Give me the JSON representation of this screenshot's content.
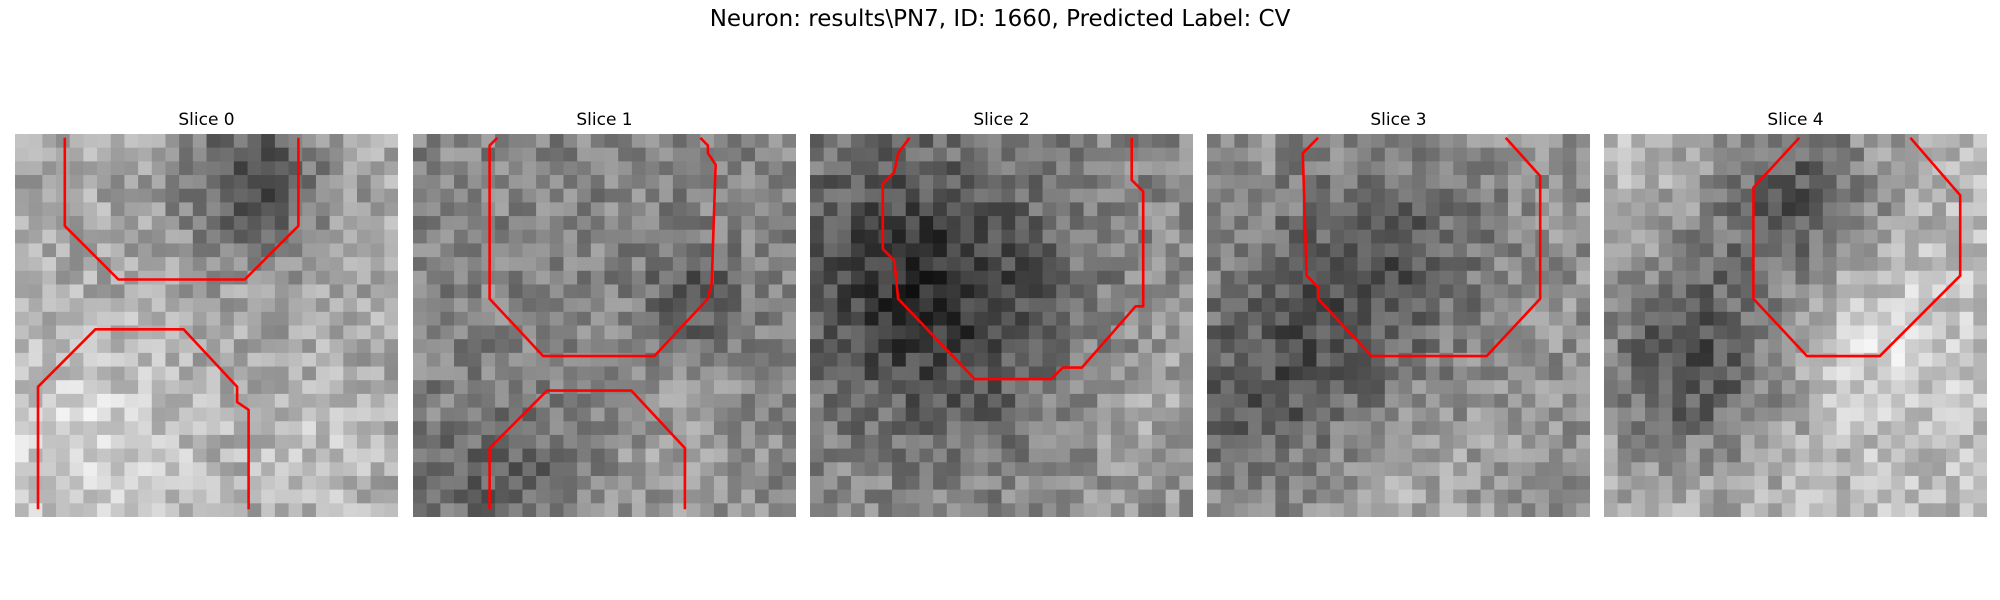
{
  "figure": {
    "suptitle": "Neuron: results\\PN7, ID: 1660, Predicted Label: CV"
  },
  "style": {
    "contour_color": "#ff0000",
    "colormap": "grayscale"
  },
  "panels": [
    {
      "title": "Slice 0",
      "mean_gray": 168,
      "dark_blobs": [
        [
          0.62,
          0.12,
          0.14,
          0.75
        ]
      ],
      "light_blobs": [
        [
          0.18,
          0.83,
          0.2,
          0.55
        ],
        [
          0.78,
          0.83,
          0.12,
          0.3
        ]
      ],
      "contours": [
        [
          [
            0.13,
            0.01
          ],
          [
            0.13,
            0.24
          ],
          [
            0.27,
            0.38
          ],
          [
            0.6,
            0.38
          ],
          [
            0.74,
            0.24
          ],
          [
            0.74,
            0.01
          ]
        ],
        [
          [
            0.06,
            0.98
          ],
          [
            0.06,
            0.66
          ],
          [
            0.21,
            0.51
          ],
          [
            0.44,
            0.51
          ],
          [
            0.58,
            0.66
          ],
          [
            0.58,
            0.7
          ],
          [
            0.61,
            0.72
          ],
          [
            0.61,
            0.98
          ]
        ]
      ]
    },
    {
      "title": "Slice 1",
      "mean_gray": 132,
      "dark_blobs": [
        [
          0.74,
          0.42,
          0.08,
          0.5
        ],
        [
          0.28,
          0.9,
          0.16,
          0.3
        ]
      ],
      "light_blobs": [
        [
          0.65,
          0.88,
          0.18,
          0.3
        ]
      ],
      "contours": [
        [
          [
            0.22,
            0.01
          ],
          [
            0.2,
            0.03
          ],
          [
            0.2,
            0.43
          ],
          [
            0.34,
            0.58
          ],
          [
            0.63,
            0.58
          ],
          [
            0.77,
            0.43
          ],
          [
            0.78,
            0.39
          ],
          [
            0.79,
            0.08
          ],
          [
            0.77,
            0.05
          ],
          [
            0.77,
            0.03
          ],
          [
            0.75,
            0.01
          ]
        ],
        [
          [
            0.2,
            0.98
          ],
          [
            0.2,
            0.82
          ],
          [
            0.35,
            0.67
          ],
          [
            0.57,
            0.67
          ],
          [
            0.71,
            0.82
          ],
          [
            0.71,
            0.98
          ]
        ]
      ]
    },
    {
      "title": "Slice 2",
      "mean_gray": 140,
      "dark_blobs": [
        [
          0.22,
          0.35,
          0.24,
          0.55
        ],
        [
          0.45,
          0.5,
          0.25,
          0.35
        ]
      ],
      "light_blobs": [
        [
          0.88,
          0.7,
          0.18,
          0.35
        ]
      ],
      "contours": [
        [
          [
            0.26,
            0.01
          ],
          [
            0.23,
            0.05
          ],
          [
            0.22,
            0.1
          ],
          [
            0.19,
            0.13
          ],
          [
            0.19,
            0.3
          ],
          [
            0.22,
            0.33
          ],
          [
            0.23,
            0.43
          ],
          [
            0.43,
            0.64
          ],
          [
            0.63,
            0.64
          ],
          [
            0.66,
            0.61
          ],
          [
            0.71,
            0.61
          ],
          [
            0.85,
            0.45
          ],
          [
            0.87,
            0.45
          ],
          [
            0.87,
            0.15
          ],
          [
            0.84,
            0.12
          ],
          [
            0.84,
            0.01
          ]
        ]
      ]
    },
    {
      "title": "Slice 3",
      "mean_gray": 148,
      "dark_blobs": [
        [
          0.2,
          0.65,
          0.22,
          0.55
        ],
        [
          0.47,
          0.32,
          0.2,
          0.45
        ]
      ],
      "light_blobs": [
        [
          0.45,
          0.9,
          0.2,
          0.35
        ]
      ],
      "contours": [
        [
          [
            0.29,
            0.01
          ],
          [
            0.25,
            0.05
          ],
          [
            0.26,
            0.37
          ],
          [
            0.29,
            0.4
          ],
          [
            0.29,
            0.43
          ],
          [
            0.43,
            0.58
          ],
          [
            0.73,
            0.58
          ],
          [
            0.87,
            0.43
          ],
          [
            0.87,
            0.11
          ],
          [
            0.78,
            0.01
          ]
        ]
      ]
    },
    {
      "title": "Slice 4",
      "mean_gray": 185,
      "dark_blobs": [
        [
          0.25,
          0.58,
          0.2,
          0.95
        ],
        [
          0.52,
          0.17,
          0.17,
          0.85
        ]
      ],
      "light_blobs": [
        [
          0.62,
          0.5,
          0.2,
          0.5
        ]
      ],
      "contours": [
        [
          [
            0.51,
            0.01
          ],
          [
            0.39,
            0.14
          ],
          [
            0.39,
            0.43
          ],
          [
            0.53,
            0.58
          ],
          [
            0.72,
            0.58
          ],
          [
            0.93,
            0.37
          ],
          [
            0.93,
            0.16
          ],
          [
            0.8,
            0.01
          ]
        ]
      ]
    }
  ]
}
